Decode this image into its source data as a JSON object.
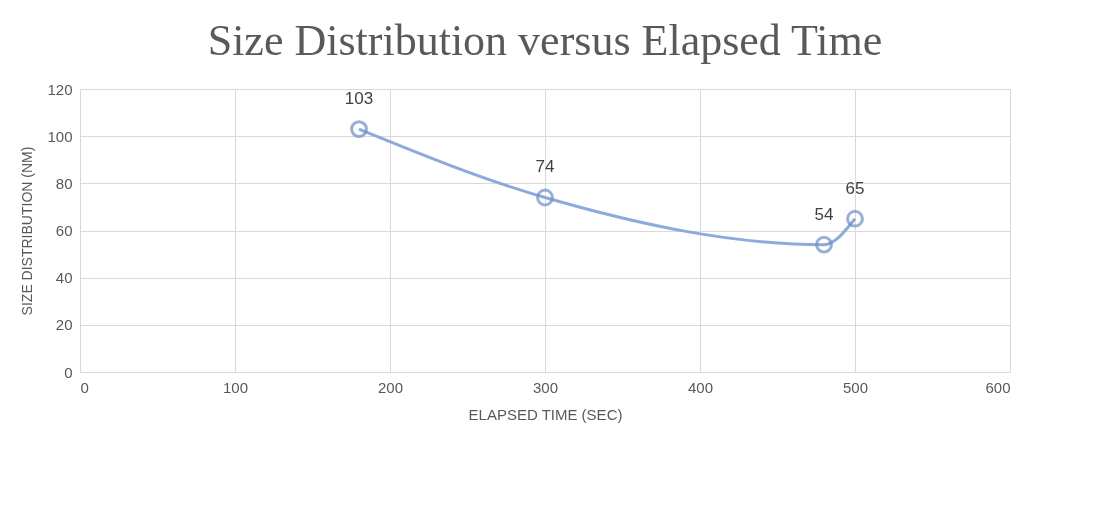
{
  "chart_data": {
    "type": "line",
    "title": "Size Distribution versus Elapsed Time",
    "xlabel": "ELAPSED TIME (SEC)",
    "ylabel": "SIZE DISTRIBUTION (NM)",
    "x": [
      180,
      300,
      480,
      500
    ],
    "series": [
      {
        "color": "#8ea9db",
        "values": [
          103,
          74,
          54,
          65
        ]
      }
    ],
    "xlim": [
      0,
      600
    ],
    "xticks": [
      0,
      100,
      200,
      300,
      400,
      500,
      600
    ],
    "ylim": [
      0,
      120
    ],
    "yticks": [
      0,
      20,
      40,
      60,
      80,
      100,
      120
    ],
    "grid": true,
    "marker": "circle",
    "line_style": "solid",
    "data_labels": true
  }
}
